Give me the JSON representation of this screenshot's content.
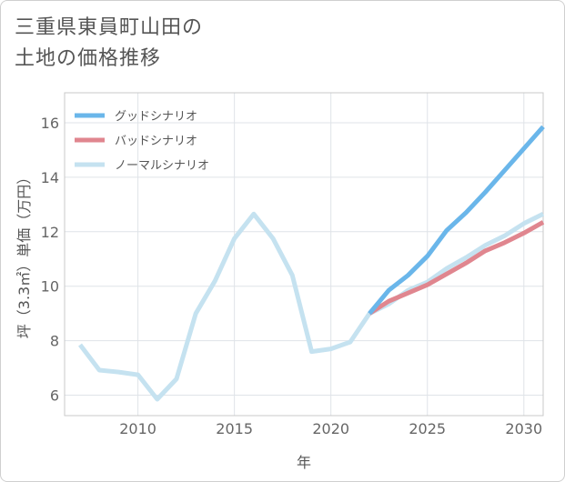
{
  "title_lines": [
    "三重県東員町山田の",
    "土地の価格推移"
  ],
  "chart_data": {
    "type": "line",
    "title": "三重県東員町山田の土地の価格推移",
    "xlabel": "年",
    "ylabel": "坪（3.3㎡）単価（万円）",
    "xlim": [
      2006.2,
      2031
    ],
    "ylim": [
      5.25,
      17.1
    ],
    "xticks": [
      2010,
      2015,
      2020,
      2025,
      2030
    ],
    "yticks": [
      6,
      8,
      10,
      12,
      14,
      16
    ],
    "grid": true,
    "legend_position": "top-left",
    "series": [
      {
        "name": "ノーマルシナリオ",
        "color": "#c5e2f0",
        "x": [
          2007,
          2008,
          2009,
          2010,
          2011,
          2012,
          2013,
          2014,
          2015,
          2016,
          2017,
          2018,
          2019,
          2020,
          2021,
          2022,
          2023,
          2024,
          2025,
          2026,
          2027,
          2028,
          2029,
          2030,
          2031
        ],
        "values": [
          7.85,
          6.92,
          6.85,
          6.75,
          5.85,
          6.6,
          9.0,
          10.2,
          11.75,
          12.65,
          11.75,
          10.4,
          7.6,
          7.7,
          7.95,
          9.0,
          9.35,
          9.85,
          10.15,
          10.65,
          11.05,
          11.5,
          11.85,
          12.3,
          12.65
        ]
      },
      {
        "name": "バッドシナリオ",
        "color": "#e0868f",
        "x": [
          2022,
          2023,
          2024,
          2025,
          2026,
          2027,
          2028,
          2029,
          2030,
          2031
        ],
        "values": [
          9.0,
          9.45,
          9.75,
          10.05,
          10.45,
          10.85,
          11.3,
          11.6,
          11.95,
          12.35
        ]
      },
      {
        "name": "グッドシナリオ",
        "color": "#6ab6ea",
        "x": [
          2022,
          2023,
          2024,
          2025,
          2026,
          2027,
          2028,
          2029,
          2030,
          2031
        ],
        "values": [
          9.0,
          9.85,
          10.4,
          11.1,
          12.05,
          12.7,
          13.45,
          14.25,
          15.05,
          15.85
        ]
      }
    ],
    "legend_order": [
      "グッドシナリオ",
      "バッドシナリオ",
      "ノーマルシナリオ"
    ]
  }
}
